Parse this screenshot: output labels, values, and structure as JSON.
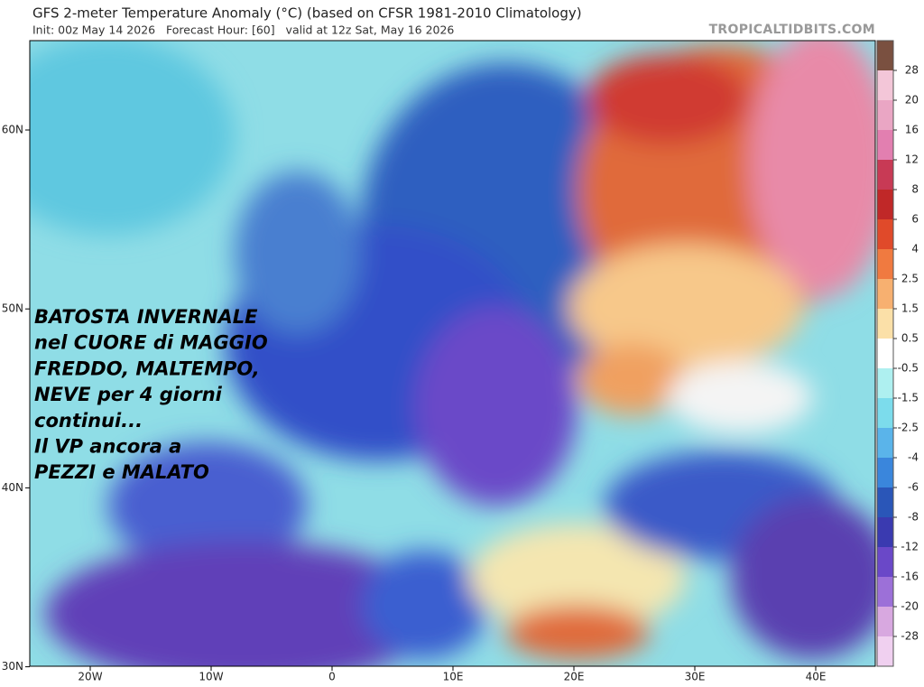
{
  "header": {
    "title": "GFS 2-meter Temperature Anomaly (°C) (based on CFSR 1981-2010 Climatology)",
    "init": "Init: 00z May 14 2026   Forecast Hour: [60]   valid at 12z Sat, May 16 2026",
    "source": "TROPICALTIDBITS.COM"
  },
  "map": {
    "lat_labels": [
      "60N",
      "50N",
      "40N",
      "30N"
    ],
    "lon_labels": [
      "20W",
      "10W",
      "0",
      "10E",
      "20E",
      "30E",
      "40E"
    ]
  },
  "colorbar": {
    "labels": [
      "28",
      "20",
      "16",
      "12",
      "8",
      "6",
      "4",
      "2.5",
      "1.5",
      "0.5",
      "-0.5",
      "-1.5",
      "-2.5",
      "-4",
      "-6",
      "-8",
      "-12",
      "-16",
      "-20",
      "-28"
    ]
  },
  "overlay": {
    "lines": [
      "BATOSTA INVERNALE",
      "nel CUORE di MAGGIO",
      "FREDDO, MALTEMPO,",
      "NEVE per 4 giorni",
      "continui...",
      "Il VP ancora a",
      "PEZZI e MALATO"
    ]
  }
}
